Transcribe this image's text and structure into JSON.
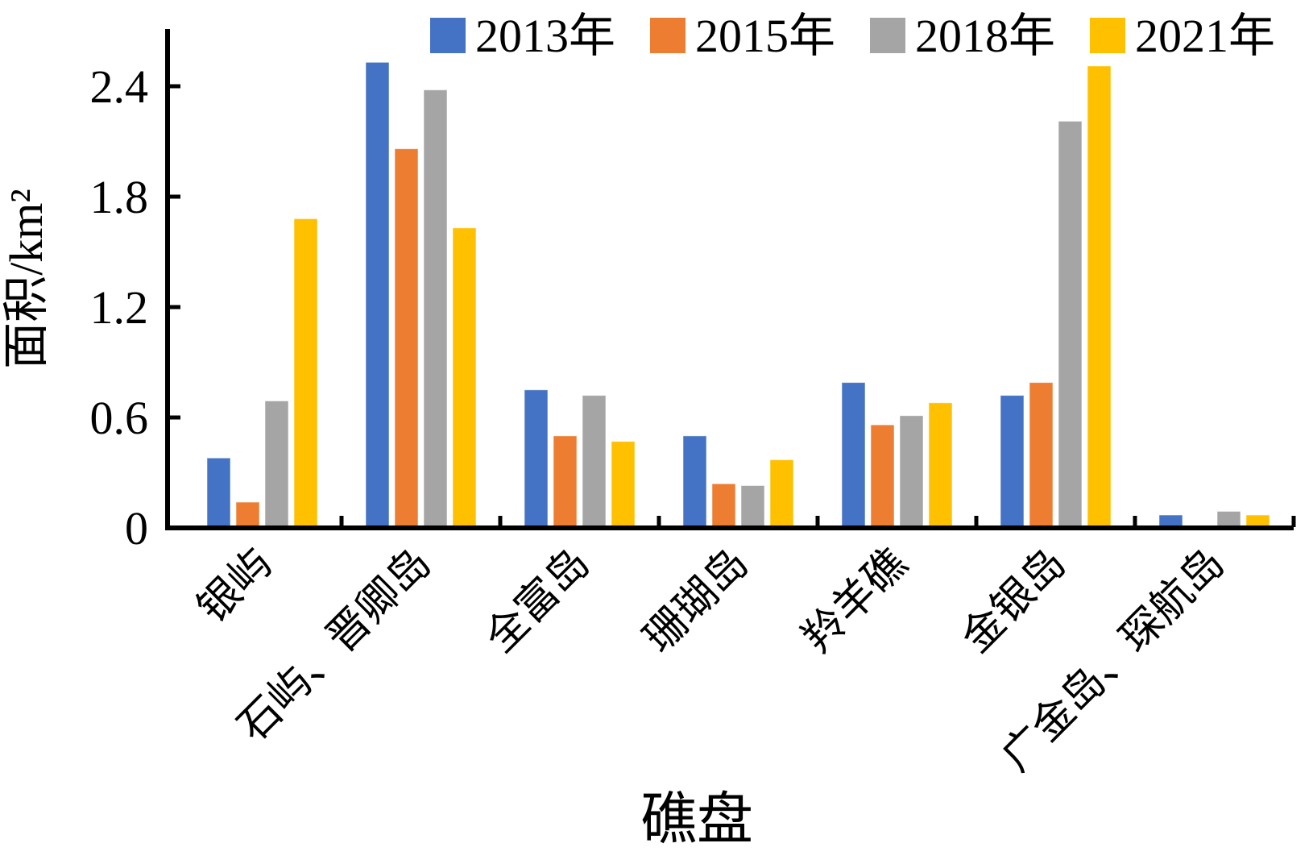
{
  "chart_data": {
    "type": "bar",
    "title": "",
    "xlabel": "礁盘",
    "ylabel": "面积/km²",
    "ylim": [
      0,
      2.7
    ],
    "yticks": [
      0,
      0.6,
      1.2,
      1.8,
      2.4
    ],
    "ytick_labels": [
      "0",
      "0.6",
      "1.2",
      "1.8",
      "2.4"
    ],
    "grid": false,
    "legend_position": "top",
    "axis_color": "#000000",
    "categories": [
      "银屿",
      "石屿、晋卿岛",
      "全富岛",
      "珊瑚岛",
      "羚羊礁",
      "金银岛",
      "广金岛、琛航岛"
    ],
    "series": [
      {
        "name": "2013年",
        "color": "#4472C4",
        "values": [
          0.38,
          2.53,
          0.75,
          0.5,
          0.79,
          0.72,
          0.07
        ]
      },
      {
        "name": "2015年",
        "color": "#ED7D31",
        "values": [
          0.14,
          2.06,
          0.5,
          0.24,
          0.56,
          0.79,
          0.0
        ]
      },
      {
        "name": "2018年",
        "color": "#A5A5A5",
        "values": [
          0.69,
          2.38,
          0.72,
          0.23,
          0.61,
          2.21,
          0.09
        ]
      },
      {
        "name": "2021年",
        "color": "#FFC000",
        "values": [
          1.68,
          1.63,
          0.47,
          0.37,
          0.68,
          2.51,
          0.07
        ]
      }
    ]
  }
}
